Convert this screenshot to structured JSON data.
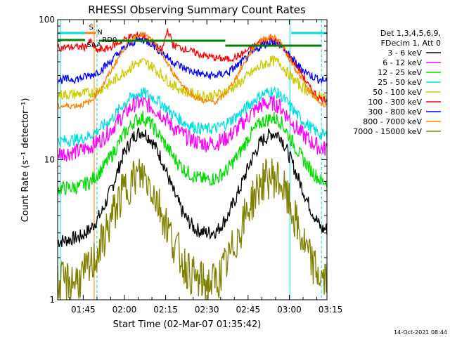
{
  "chart_data": {
    "type": "line",
    "title": "RHESSI Observing Summary Count Rates",
    "xlabel": "Start Time (02-Mar-07 01:35:42)",
    "ylabel": "Count Rate (s⁻¹ detector⁻¹)",
    "y_scale": "log",
    "ylim": [
      1,
      100
    ],
    "xlim_minutes_after_start": [
      0,
      98
    ],
    "x_ticks": [
      {
        "label": "01:45",
        "minutes": 9.3
      },
      {
        "label": "02:00",
        "minutes": 24.3
      },
      {
        "label": "02:15",
        "minutes": 39.3
      },
      {
        "label": "02:30",
        "minutes": 54.3
      },
      {
        "label": "02:45",
        "minutes": 69.3
      },
      {
        "label": "03:00",
        "minutes": 84.3
      },
      {
        "label": "03:15",
        "minutes": 99.3
      }
    ],
    "y_ticks": [
      {
        "label": "1",
        "value": 1
      },
      {
        "label": "10",
        "value": 10
      },
      {
        "label": "100",
        "value": 100
      }
    ],
    "legend": {
      "header": [
        "Det 1,3,4,5,6,9,",
        "FDecim 1, Att 0"
      ],
      "placement": "right"
    },
    "flags": [
      {
        "label": "S",
        "color": "#ff8000"
      },
      {
        "label": "N",
        "color": "#00c0c0"
      },
      {
        "label": "RD0",
        "color": "#008000"
      },
      {
        "label": "SAA",
        "color": "#008000"
      }
    ],
    "series": [
      {
        "name": "3 - 6 keV",
        "color": "#000000",
        "points": [
          [
            0,
            2.6
          ],
          [
            8,
            2.8
          ],
          [
            12,
            3.2
          ],
          [
            16,
            4.2
          ],
          [
            20,
            6.5
          ],
          [
            24,
            11
          ],
          [
            28,
            15
          ],
          [
            31,
            16
          ],
          [
            34,
            14
          ],
          [
            38,
            10
          ],
          [
            42,
            6
          ],
          [
            46,
            4
          ],
          [
            50,
            3.2
          ],
          [
            54,
            3
          ],
          [
            58,
            3.1
          ],
          [
            62,
            4
          ],
          [
            66,
            6
          ],
          [
            70,
            9.5
          ],
          [
            74,
            13.5
          ],
          [
            78,
            15.5
          ],
          [
            81,
            15
          ],
          [
            84,
            11
          ],
          [
            88,
            7
          ],
          [
            92,
            4.5
          ],
          [
            96,
            3.2
          ]
        ]
      },
      {
        "name": "6 - 12 keV",
        "color": "#ff00ff",
        "points": [
          [
            0,
            11
          ],
          [
            8,
            11.5
          ],
          [
            12,
            12.5
          ],
          [
            16,
            14
          ],
          [
            20,
            17
          ],
          [
            24,
            21
          ],
          [
            28,
            25
          ],
          [
            31,
            25.5
          ],
          [
            34,
            24
          ],
          [
            38,
            21
          ],
          [
            42,
            17
          ],
          [
            46,
            15
          ],
          [
            50,
            13.5
          ],
          [
            54,
            13
          ],
          [
            58,
            13.2
          ],
          [
            62,
            14.5
          ],
          [
            66,
            17
          ],
          [
            70,
            21
          ],
          [
            74,
            24.5
          ],
          [
            78,
            25.5
          ],
          [
            81,
            24
          ],
          [
            84,
            20
          ],
          [
            88,
            16
          ],
          [
            92,
            13.5
          ],
          [
            96,
            12
          ]
        ]
      },
      {
        "name": "12 - 25 keV",
        "color": "#00dd00",
        "points": [
          [
            0,
            6.2
          ],
          [
            8,
            6.4
          ],
          [
            12,
            7
          ],
          [
            16,
            8.5
          ],
          [
            20,
            11
          ],
          [
            24,
            15
          ],
          [
            28,
            19
          ],
          [
            31,
            20
          ],
          [
            34,
            18
          ],
          [
            38,
            14
          ],
          [
            42,
            10.5
          ],
          [
            46,
            8.5
          ],
          [
            50,
            7.5
          ],
          [
            54,
            7.2
          ],
          [
            58,
            7.4
          ],
          [
            62,
            8.6
          ],
          [
            66,
            11
          ],
          [
            70,
            15
          ],
          [
            74,
            18.5
          ],
          [
            78,
            20
          ],
          [
            81,
            19
          ],
          [
            84,
            15
          ],
          [
            88,
            11
          ],
          [
            92,
            8.5
          ],
          [
            96,
            7
          ]
        ]
      },
      {
        "name": "25 - 50 keV",
        "color": "#00e0e0",
        "points": [
          [
            0,
            13.5
          ],
          [
            8,
            14
          ],
          [
            12,
            15
          ],
          [
            16,
            17
          ],
          [
            20,
            20
          ],
          [
            24,
            25
          ],
          [
            28,
            29
          ],
          [
            31,
            30
          ],
          [
            34,
            28.5
          ],
          [
            38,
            25
          ],
          [
            42,
            21
          ],
          [
            46,
            18.5
          ],
          [
            50,
            17
          ],
          [
            54,
            16.5
          ],
          [
            58,
            16.8
          ],
          [
            62,
            18.5
          ],
          [
            66,
            21
          ],
          [
            70,
            25
          ],
          [
            74,
            29
          ],
          [
            78,
            31
          ],
          [
            81,
            29
          ],
          [
            84,
            25
          ],
          [
            88,
            20
          ],
          [
            92,
            17
          ],
          [
            96,
            15
          ]
        ]
      },
      {
        "name": "50 - 100 keV",
        "color": "#cccc00",
        "points": [
          [
            0,
            29
          ],
          [
            8,
            29.5
          ],
          [
            12,
            30
          ],
          [
            16,
            32
          ],
          [
            20,
            36
          ],
          [
            24,
            42
          ],
          [
            28,
            48
          ],
          [
            31,
            50
          ],
          [
            34,
            47
          ],
          [
            38,
            40
          ],
          [
            42,
            34
          ],
          [
            46,
            31
          ],
          [
            50,
            29
          ],
          [
            54,
            28.5
          ],
          [
            58,
            29
          ],
          [
            62,
            31.5
          ],
          [
            66,
            35
          ],
          [
            70,
            41
          ],
          [
            74,
            47
          ],
          [
            78,
            51
          ],
          [
            81,
            49
          ],
          [
            84,
            41
          ],
          [
            88,
            34
          ],
          [
            92,
            30
          ],
          [
            96,
            28
          ]
        ]
      },
      {
        "name": "100 - 300 keV",
        "color": "#ff0000",
        "points": [
          [
            0,
            63
          ],
          [
            10,
            64
          ],
          [
            12,
            70
          ],
          [
            14,
            60
          ],
          [
            18,
            62
          ],
          [
            22,
            68
          ],
          [
            26,
            75
          ],
          [
            30,
            78
          ],
          [
            32,
            74
          ],
          [
            36,
            64
          ],
          [
            38,
            60
          ],
          [
            40,
            85
          ],
          [
            42,
            66
          ],
          [
            46,
            62
          ],
          [
            50,
            58
          ],
          [
            54,
            55
          ],
          [
            58,
            53
          ],
          [
            62,
            52
          ],
          [
            66,
            55
          ],
          [
            70,
            62
          ],
          [
            74,
            70
          ],
          [
            78,
            73
          ],
          [
            80,
            68
          ],
          [
            84,
            56
          ],
          [
            88,
            44
          ],
          [
            92,
            32
          ],
          [
            96,
            27
          ]
        ]
      },
      {
        "name": "300 - 800 keV",
        "color": "#0000ff",
        "points": [
          [
            0,
            37
          ],
          [
            8,
            38
          ],
          [
            12,
            40
          ],
          [
            16,
            44
          ],
          [
            20,
            52
          ],
          [
            24,
            62
          ],
          [
            28,
            70
          ],
          [
            31,
            72
          ],
          [
            34,
            68
          ],
          [
            38,
            58
          ],
          [
            42,
            50
          ],
          [
            46,
            45
          ],
          [
            50,
            42
          ],
          [
            54,
            40
          ],
          [
            58,
            40
          ],
          [
            62,
            42
          ],
          [
            66,
            48
          ],
          [
            70,
            56
          ],
          [
            74,
            65
          ],
          [
            78,
            70
          ],
          [
            81,
            67
          ],
          [
            84,
            56
          ],
          [
            88,
            46
          ],
          [
            92,
            40
          ],
          [
            96,
            37
          ]
        ]
      },
      {
        "name": "800 - 7000 keV",
        "color": "#ff8000",
        "points": [
          [
            0,
            24
          ],
          [
            8,
            24.5
          ],
          [
            12,
            26
          ],
          [
            16,
            33
          ],
          [
            20,
            45
          ],
          [
            24,
            62
          ],
          [
            28,
            76
          ],
          [
            31,
            79
          ],
          [
            34,
            72
          ],
          [
            38,
            56
          ],
          [
            42,
            42
          ],
          [
            46,
            33
          ],
          [
            50,
            28
          ],
          [
            54,
            26
          ],
          [
            58,
            26
          ],
          [
            62,
            31
          ],
          [
            66,
            42
          ],
          [
            70,
            58
          ],
          [
            74,
            72
          ],
          [
            78,
            76
          ],
          [
            81,
            70
          ],
          [
            84,
            54
          ],
          [
            88,
            40
          ],
          [
            92,
            30
          ],
          [
            96,
            25
          ]
        ]
      },
      {
        "name": "7000 - 15000 keV",
        "color": "#808000",
        "points": [
          [
            0,
            1.3
          ],
          [
            8,
            1.4
          ],
          [
            12,
            1.7
          ],
          [
            16,
            2.5
          ],
          [
            20,
            4
          ],
          [
            24,
            6
          ],
          [
            28,
            7.5
          ],
          [
            31,
            7.8
          ],
          [
            34,
            6.5
          ],
          [
            38,
            4.2
          ],
          [
            42,
            2.6
          ],
          [
            46,
            1.8
          ],
          [
            50,
            1.4
          ],
          [
            54,
            1.3
          ],
          [
            58,
            1.35
          ],
          [
            62,
            1.9
          ],
          [
            66,
            3
          ],
          [
            70,
            4.8
          ],
          [
            74,
            6.8
          ],
          [
            78,
            7.6
          ],
          [
            81,
            7
          ],
          [
            84,
            5
          ],
          [
            88,
            3
          ],
          [
            92,
            1.9
          ],
          [
            96,
            1.4
          ]
        ]
      }
    ]
  },
  "footer": {
    "timestamp": "14-Oct-2021 08:44"
  }
}
